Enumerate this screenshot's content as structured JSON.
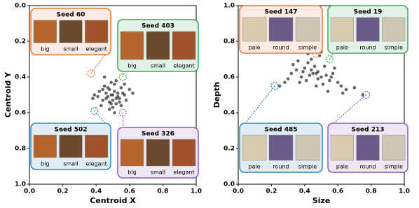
{
  "chart_data": [
    {
      "type": "scatter",
      "xlabel": "Centroid X",
      "ylabel": "Centroid Y",
      "xlim": [
        0,
        1
      ],
      "ylim": [
        1,
        0
      ],
      "xticks": [
        {
          "value": 0,
          "label": "0.0"
        },
        {
          "value": 0.2,
          "label": "0.2"
        },
        {
          "value": 0.4,
          "label": "0.4"
        },
        {
          "value": 0.6,
          "label": "0.6"
        },
        {
          "value": 0.8,
          "label": "0.8"
        },
        {
          "value": 1,
          "label": "1.0"
        }
      ],
      "yticks": [
        {
          "value": 0,
          "label": "0.0"
        },
        {
          "value": 0.2,
          "label": "0.2"
        },
        {
          "value": 0.4,
          "label": "0.4"
        },
        {
          "value": 0.6,
          "label": "0.6"
        },
        {
          "value": 0.8,
          "label": "0.8"
        },
        {
          "value": 1,
          "label": "1.0"
        }
      ],
      "color": "#333333",
      "x": [
        0.5,
        0.48,
        0.52,
        0.46,
        0.55,
        0.44,
        0.51,
        0.49,
        0.53,
        0.47,
        0.57,
        0.42,
        0.5,
        0.54,
        0.45,
        0.58,
        0.41,
        0.52,
        0.48,
        0.56,
        0.43,
        0.6,
        0.39,
        0.51,
        0.49,
        0.55,
        0.46,
        0.53,
        0.47,
        0.5,
        0.62,
        0.38,
        0.52,
        0.44,
        0.57,
        0.49,
        0.51,
        0.45,
        0.54,
        0.48
      ],
      "y": [
        0.5,
        0.47,
        0.52,
        0.49,
        0.46,
        0.53,
        0.44,
        0.55,
        0.49,
        0.51,
        0.5,
        0.48,
        0.57,
        0.54,
        0.45,
        0.53,
        0.51,
        0.42,
        0.58,
        0.49,
        0.56,
        0.47,
        0.5,
        0.48,
        0.43,
        0.56,
        0.52,
        0.51,
        0.46,
        0.53,
        0.49,
        0.52,
        0.55,
        0.47,
        0.44,
        0.5,
        0.6,
        0.4,
        0.52,
        0.54
      ],
      "annotations": [
        {
          "text": "Seed 60",
          "x": 0.37,
          "y": 0.38,
          "color": "#e8773a",
          "labels": [
            "big",
            "small",
            "elegant"
          ]
        },
        {
          "text": "Seed 403",
          "x": 0.56,
          "y": 0.4,
          "color": "#3aaa5a",
          "labels": [
            "big",
            "small",
            "elegant"
          ]
        },
        {
          "text": "Seed 502",
          "x": 0.39,
          "y": 0.59,
          "color": "#2e86c1",
          "labels": [
            "big",
            "small",
            "elegant"
          ]
        },
        {
          "text": "Seed 326",
          "x": 0.56,
          "y": 0.6,
          "color": "#8e5cc4",
          "labels": [
            "big",
            "small",
            "elegant"
          ]
        }
      ]
    },
    {
      "type": "scatter",
      "xlabel": "Size",
      "ylabel": "Depth",
      "xlim": [
        0,
        1
      ],
      "ylim": [
        0,
        1
      ],
      "xticks": [
        {
          "value": 0,
          "label": "0.0"
        },
        {
          "value": 0.2,
          "label": "0.2"
        },
        {
          "value": 0.4,
          "label": "0.4"
        },
        {
          "value": 0.6,
          "label": "0.6"
        },
        {
          "value": 0.8,
          "label": "0.8"
        },
        {
          "value": 1,
          "label": "1.0"
        }
      ],
      "yticks": [
        {
          "value": 0,
          "label": "0.0"
        },
        {
          "value": 0.2,
          "label": "0.2"
        },
        {
          "value": 0.4,
          "label": "0.4"
        },
        {
          "value": 0.6,
          "label": "0.6"
        },
        {
          "value": 0.8,
          "label": "0.8"
        },
        {
          "value": 1,
          "label": "1.0"
        }
      ],
      "color": "#333333",
      "x": [
        0.45,
        0.4,
        0.5,
        0.35,
        0.55,
        0.42,
        0.48,
        0.38,
        0.52,
        0.6,
        0.3,
        0.44,
        0.47,
        0.57,
        0.33,
        0.62,
        0.41,
        0.49,
        0.53,
        0.36,
        0.65,
        0.28,
        0.46,
        0.51,
        0.43,
        0.58,
        0.39,
        0.54,
        0.7,
        0.25,
        0.48,
        0.44,
        0.56,
        0.37,
        0.5,
        0.63,
        0.42,
        0.47,
        0.75,
        0.32
      ],
      "y": [
        0.62,
        0.65,
        0.6,
        0.64,
        0.58,
        0.68,
        0.63,
        0.6,
        0.66,
        0.57,
        0.59,
        0.7,
        0.55,
        0.62,
        0.67,
        0.55,
        0.58,
        0.72,
        0.61,
        0.69,
        0.53,
        0.57,
        0.66,
        0.56,
        0.61,
        0.65,
        0.63,
        0.52,
        0.54,
        0.55,
        0.59,
        0.64,
        0.6,
        0.57,
        0.74,
        0.51,
        0.73,
        0.62,
        0.5,
        0.62
      ],
      "annotations": [
        {
          "text": "Seed 147",
          "x": 0.47,
          "y": 0.73,
          "color": "#e8773a",
          "labels": [
            "pale",
            "round",
            "simple"
          ]
        },
        {
          "text": "Seed 19",
          "x": 0.55,
          "y": 0.7,
          "color": "#3aaa5a",
          "labels": [
            "pale",
            "round",
            "simple"
          ]
        },
        {
          "text": "Seed 485",
          "x": 0.22,
          "y": 0.55,
          "color": "#2e86c1",
          "labels": [
            "pale",
            "round",
            "simple"
          ]
        },
        {
          "text": "Seed 213",
          "x": 0.77,
          "y": 0.5,
          "color": "#8e5cc4",
          "labels": [
            "pale",
            "round",
            "simple"
          ]
        }
      ]
    }
  ]
}
